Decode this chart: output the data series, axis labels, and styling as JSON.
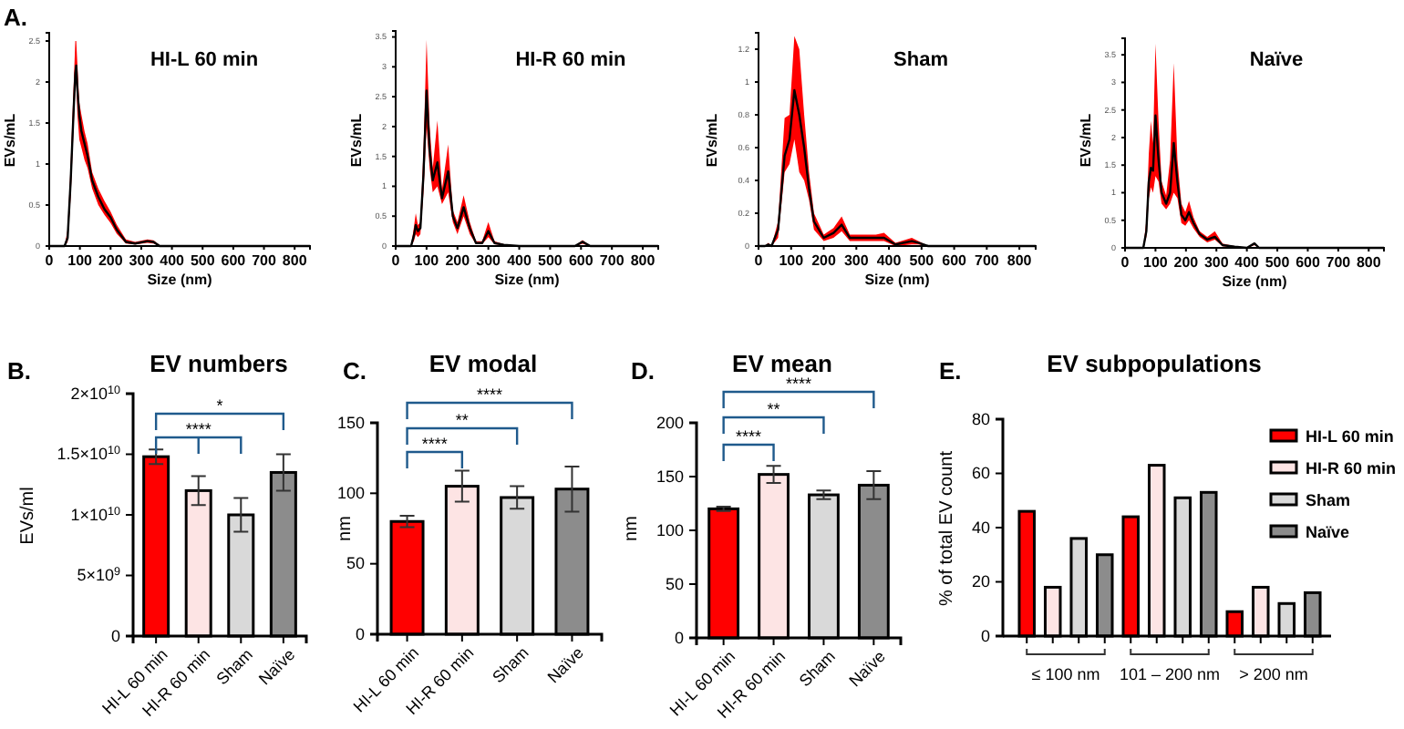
{
  "chart_data": [
    {
      "type": "line",
      "title": "HI-L 60 min",
      "xlabel": "Size (nm)",
      "ylabel": "EVs/mL",
      "annotations": [
        "A."
      ],
      "xlim": [
        0,
        850
      ],
      "xticks": [
        0,
        100,
        200,
        300,
        400,
        500,
        600,
        700,
        800
      ],
      "ylim": [
        0,
        2.6
      ],
      "yticks": [
        0,
        0.5,
        1.0,
        1.5,
        2.0,
        2.5
      ],
      "series": [
        {
          "color": "#000000",
          "x": [
            0,
            50,
            60,
            70,
            80,
            85,
            88,
            92,
            98,
            105,
            115,
            125,
            140,
            160,
            180,
            200,
            220,
            250,
            280,
            320,
            340,
            360,
            400,
            800,
            850
          ],
          "values": [
            0,
            0,
            0.1,
            0.8,
            1.7,
            2.1,
            2.2,
            1.9,
            1.6,
            1.4,
            1.25,
            1.1,
            0.8,
            0.6,
            0.45,
            0.35,
            0.2,
            0.05,
            0.03,
            0.06,
            0.05,
            0,
            0,
            0,
            0
          ],
          "lower": [
            0,
            0,
            0.05,
            0.6,
            1.5,
            1.9,
            2.0,
            1.6,
            1.3,
            1.2,
            1.05,
            0.95,
            0.7,
            0.5,
            0.38,
            0.28,
            0.15,
            0.03,
            0.02,
            0.04,
            0.03,
            0,
            0,
            0,
            0
          ],
          "upper": [
            0,
            0,
            0.2,
            1.0,
            2.0,
            2.5,
            2.5,
            2.2,
            1.75,
            1.6,
            1.4,
            1.25,
            0.9,
            0.7,
            0.55,
            0.42,
            0.26,
            0.08,
            0.05,
            0.08,
            0.07,
            0.01,
            0,
            0,
            0
          ]
        }
      ]
    },
    {
      "type": "line",
      "title": "HI-R 60 min",
      "xlabel": "Size (nm)",
      "ylabel": "EVs/mL",
      "xlim": [
        0,
        850
      ],
      "xticks": [
        0,
        100,
        200,
        300,
        400,
        500,
        600,
        700,
        800
      ],
      "ylim": [
        0,
        3.6
      ],
      "yticks": [
        0,
        0.5,
        1.0,
        1.5,
        2.0,
        2.5,
        3.0,
        3.5
      ],
      "series": [
        {
          "color": "#000000",
          "x": [
            0,
            50,
            60,
            65,
            72,
            80,
            90,
            100,
            110,
            120,
            135,
            150,
            170,
            185,
            200,
            220,
            240,
            260,
            280,
            300,
            320,
            350,
            400,
            580,
            605,
            630,
            850
          ],
          "values": [
            0,
            0,
            0.2,
            0.35,
            0.25,
            0.3,
            1.2,
            2.6,
            1.6,
            1.1,
            1.4,
            0.8,
            1.25,
            0.5,
            0.3,
            0.65,
            0.3,
            0.05,
            0.05,
            0.25,
            0.05,
            0.02,
            0,
            0,
            0.07,
            0,
            0
          ],
          "lower": [
            0,
            0,
            0.1,
            0.2,
            0.15,
            0.2,
            0.9,
            2.0,
            1.3,
            0.9,
            1.0,
            0.7,
            0.9,
            0.4,
            0.2,
            0.5,
            0.2,
            0.03,
            0.03,
            0.15,
            0.03,
            0.01,
            0,
            0,
            0.04,
            0,
            0
          ],
          "upper": [
            0,
            0,
            0.35,
            0.55,
            0.35,
            0.4,
            1.6,
            3.45,
            2.0,
            1.3,
            2.1,
            0.95,
            1.7,
            0.6,
            0.4,
            0.85,
            0.4,
            0.08,
            0.08,
            0.4,
            0.08,
            0.03,
            0,
            0,
            0.1,
            0,
            0
          ]
        }
      ]
    },
    {
      "type": "line",
      "title": "Sham",
      "xlabel": "Size (nm)",
      "ylabel": "EVs/mL",
      "xlim": [
        0,
        850
      ],
      "xticks": [
        0,
        100,
        200,
        300,
        400,
        500,
        600,
        700,
        800
      ],
      "ylim": [
        0,
        1.3
      ],
      "yticks": [
        0,
        0.2,
        0.4,
        0.6,
        0.8,
        1.0,
        1.2
      ],
      "series": [
        {
          "color": "#000000",
          "x": [
            0,
            20,
            30,
            40,
            60,
            80,
            95,
            110,
            125,
            140,
            155,
            170,
            200,
            230,
            255,
            280,
            320,
            360,
            385,
            420,
            470,
            490,
            520,
            850
          ],
          "values": [
            0,
            0,
            0.01,
            0,
            0.1,
            0.55,
            0.65,
            0.95,
            0.8,
            0.6,
            0.35,
            0.15,
            0.05,
            0.08,
            0.13,
            0.05,
            0.05,
            0.05,
            0.05,
            0.01,
            0.03,
            0.02,
            0,
            0
          ],
          "lower": [
            0,
            0,
            0,
            0,
            0.05,
            0.45,
            0.5,
            0.65,
            0.45,
            0.4,
            0.28,
            0.1,
            0.03,
            0.05,
            0.09,
            0.03,
            0.03,
            0.03,
            0.03,
            0,
            0.01,
            0.01,
            0,
            0
          ],
          "upper": [
            0,
            0,
            0.02,
            0,
            0.15,
            0.78,
            0.8,
            1.28,
            1.2,
            0.8,
            0.45,
            0.2,
            0.07,
            0.11,
            0.18,
            0.07,
            0.07,
            0.07,
            0.08,
            0.02,
            0.05,
            0.03,
            0,
            0
          ]
        }
      ]
    },
    {
      "type": "line",
      "title": "Naïve",
      "xlabel": "Size (nm)",
      "ylabel": "EVs/mL",
      "xlim": [
        0,
        850
      ],
      "xticks": [
        0,
        100,
        200,
        300,
        400,
        500,
        600,
        700,
        800
      ],
      "ylim": [
        0,
        3.8
      ],
      "yticks": [
        0,
        0.5,
        1.0,
        1.5,
        2.0,
        2.5,
        3.0,
        3.5
      ],
      "series": [
        {
          "color": "#000000",
          "x": [
            0,
            60,
            70,
            78,
            85,
            92,
            100,
            110,
            120,
            135,
            148,
            160,
            172,
            185,
            198,
            210,
            225,
            245,
            270,
            295,
            320,
            360,
            400,
            425,
            440,
            850
          ],
          "values": [
            0,
            0,
            0.3,
            1.2,
            1.45,
            1.4,
            2.4,
            1.6,
            1.0,
            0.8,
            1.0,
            1.9,
            1.2,
            0.6,
            0.5,
            0.65,
            0.45,
            0.25,
            0.15,
            0.2,
            0.05,
            0.02,
            0,
            0.08,
            0,
            0
          ],
          "lower": [
            0,
            0,
            0.2,
            0.9,
            1.1,
            1.0,
            1.3,
            1.2,
            0.8,
            0.7,
            0.8,
            1.0,
            0.9,
            0.45,
            0.4,
            0.5,
            0.35,
            0.2,
            0.1,
            0.15,
            0.03,
            0.01,
            0,
            0.05,
            0,
            0
          ],
          "upper": [
            0,
            0,
            0.5,
            1.7,
            2.3,
            1.9,
            3.7,
            2.3,
            1.2,
            0.95,
            1.6,
            3.35,
            1.6,
            0.8,
            0.65,
            0.85,
            0.55,
            0.3,
            0.2,
            0.3,
            0.08,
            0.03,
            0,
            0.1,
            0,
            0
          ]
        }
      ]
    },
    {
      "type": "bar",
      "title": "EV numbers",
      "ylabel": "EVs/ml",
      "annotations": [
        "B.",
        "*",
        "****"
      ],
      "categories": [
        "HI-L 60 min",
        "HI-R 60 min",
        "Sham",
        "Naïve"
      ],
      "values": [
        14800000000.0,
        12000000000.0,
        10000000000.0,
        13500000000.0
      ],
      "errors": [
        600000000.0,
        1200000000.0,
        1400000000.0,
        1500000000.0
      ],
      "colors": [
        "#ff0000",
        "#fde4e4",
        "#d9d9d9",
        "#8c8c8c"
      ],
      "ylim": [
        0,
        20000000000.0
      ],
      "yticks": [
        0,
        {
          "value": 5000000000.0,
          "label": "5×10$^{9}$"
        },
        {
          "value": 10000000000.0,
          "label": "1×10$^{10}$"
        },
        {
          "value": 15000000000.0,
          "label": "1.5×10$^{10}$"
        },
        {
          "value": 20000000000.0,
          "label": "2×10$^{10}$"
        }
      ]
    },
    {
      "type": "bar",
      "title": "EV modal",
      "ylabel": "nm",
      "annotations": [
        "C.",
        "****",
        "**",
        "****"
      ],
      "categories": [
        "HI-L 60 min",
        "HI-R 60 min",
        "Sham",
        "Naïve"
      ],
      "values": [
        80,
        105,
        97,
        103
      ],
      "errors": [
        4,
        11,
        8,
        16
      ],
      "colors": [
        "#ff0000",
        "#fde4e4",
        "#d9d9d9",
        "#8c8c8c"
      ],
      "ylim": [
        0,
        150
      ],
      "yticks": [
        0,
        50,
        100,
        150
      ]
    },
    {
      "type": "bar",
      "title": "EV mean",
      "ylabel": "nm",
      "annotations": [
        "D.",
        "****",
        "**",
        "****"
      ],
      "categories": [
        "HI-L 60 min",
        "HI-R 60 min",
        "Sham",
        "Naïve"
      ],
      "values": [
        120,
        152,
        133,
        142
      ],
      "errors": [
        2,
        8,
        4,
        13
      ],
      "colors": [
        "#ff0000",
        "#fde4e4",
        "#d9d9d9",
        "#8c8c8c"
      ],
      "ylim": [
        0,
        200
      ],
      "yticks": [
        0,
        50,
        100,
        150,
        200
      ]
    },
    {
      "type": "bar",
      "title": "EV subpopulations",
      "ylabel": "% of total EV count",
      "annotations": [
        "E."
      ],
      "categories": [
        "≤ 100 nm",
        "101 – 200 nm",
        "> 200 nm"
      ],
      "ylim": [
        0,
        80
      ],
      "yticks": [
        0,
        20,
        40,
        60,
        80
      ],
      "legend": "right",
      "series": [
        {
          "name": "HI-L 60 min",
          "color": "#ff0000",
          "values": [
            46,
            44,
            9
          ]
        },
        {
          "name": "HI-R 60 min",
          "color": "#fde4e4",
          "values": [
            18,
            63,
            18
          ]
        },
        {
          "name": "Sham",
          "color": "#d9d9d9",
          "values": [
            36,
            51,
            12
          ]
        },
        {
          "name": "Naïve",
          "color": "#8c8c8c",
          "values": [
            30,
            53,
            16
          ]
        }
      ]
    }
  ]
}
